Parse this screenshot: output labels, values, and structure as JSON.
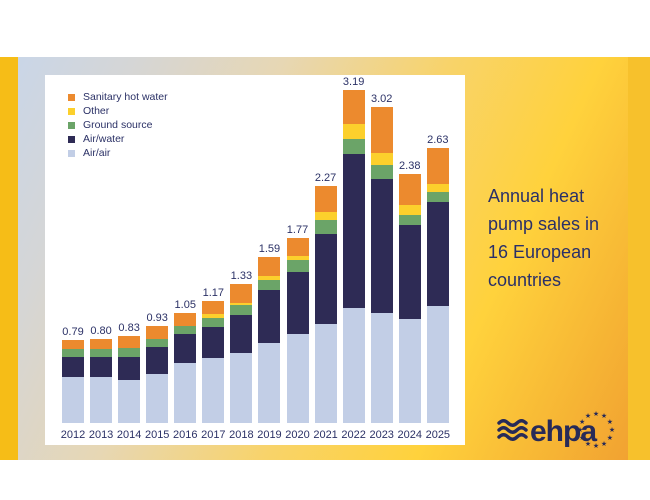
{
  "slide": {
    "title": "Annual heat pump sales in 16 European countries"
  },
  "logo": {
    "text": "ehpa",
    "icons": [
      "triple-wave-icon",
      "star-circle-icon"
    ],
    "color": "#272a58"
  },
  "colors": {
    "slide_gold_bar_left": "#f6bd17",
    "slide_gold_bar_right": "#f7c12c",
    "panel_background": "#ffffff",
    "text_navy": "#2b3166",
    "title_text": "#2a3068"
  },
  "chart_data": {
    "type": "bar",
    "stacked": true,
    "title": "",
    "xlabel": "",
    "ylabel": "",
    "y_axis_visible": false,
    "grid": false,
    "legend_position": "top-left",
    "legend_order_top_to_bottom": [
      "Sanitary hot water",
      "Other",
      "Ground source",
      "Air/water",
      "Air/air"
    ],
    "value_label_decimals": 2,
    "ylim": [
      0,
      3.4
    ],
    "categories": [
      "2012",
      "2013",
      "2014",
      "2015",
      "2016",
      "2017",
      "2018",
      "2019",
      "2020",
      "2021",
      "2022",
      "2023",
      "2024",
      "2025"
    ],
    "totals": [
      0.79,
      0.8,
      0.83,
      0.93,
      1.05,
      1.17,
      1.33,
      1.59,
      1.77,
      2.27,
      3.19,
      3.02,
      2.38,
      2.63
    ],
    "series": [
      {
        "name": "Air/air",
        "color": "#c2cee6",
        "values": [
          0.44,
          0.44,
          0.41,
          0.47,
          0.57,
          0.62,
          0.67,
          0.77,
          0.85,
          0.95,
          1.1,
          1.05,
          1.0,
          1.12
        ]
      },
      {
        "name": "Air/water",
        "color": "#2e2b55",
        "values": [
          0.19,
          0.19,
          0.22,
          0.26,
          0.28,
          0.3,
          0.36,
          0.5,
          0.6,
          0.86,
          1.47,
          1.29,
          0.9,
          1.0
        ]
      },
      {
        "name": "Ground source",
        "color": "#6ba468",
        "values": [
          0.08,
          0.08,
          0.09,
          0.07,
          0.08,
          0.09,
          0.1,
          0.1,
          0.11,
          0.13,
          0.15,
          0.13,
          0.09,
          0.09
        ]
      },
      {
        "name": "Other",
        "color": "#fcd02c",
        "values": [
          0.0,
          0.0,
          0.0,
          0.0,
          0.0,
          0.03,
          0.02,
          0.04,
          0.04,
          0.08,
          0.14,
          0.11,
          0.1,
          0.08
        ]
      },
      {
        "name": "Sanitary hot water",
        "color": "#ec8a2e",
        "values": [
          0.08,
          0.09,
          0.11,
          0.13,
          0.12,
          0.13,
          0.18,
          0.18,
          0.17,
          0.25,
          0.33,
          0.44,
          0.29,
          0.34
        ]
      }
    ]
  }
}
